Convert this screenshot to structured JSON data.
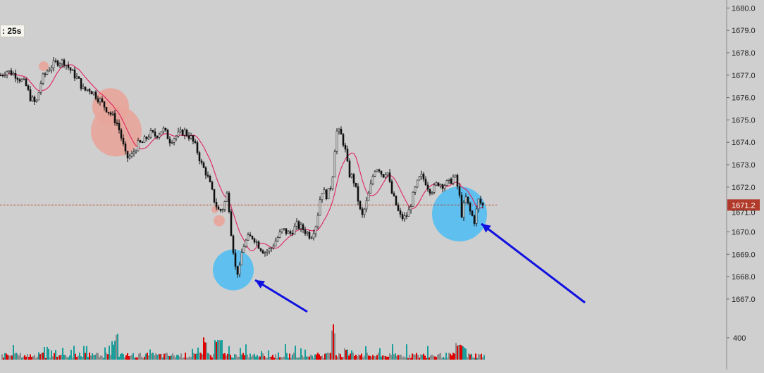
{
  "timer": {
    "label": ": 25s"
  },
  "price_axis": {
    "ticks": [
      "1680.0",
      "1679.0",
      "1678.0",
      "1677.0",
      "1676.0",
      "1675.0",
      "1674.0",
      "1673.0",
      "1672.0",
      "1670.0",
      "1669.0",
      "1668.0",
      "1667.0"
    ],
    "current_price_label": "1671.2",
    "partial_label": "1671.0"
  },
  "volume_axis": {
    "ticks": [
      "400"
    ]
  },
  "colors": {
    "background": "#cfcfcf",
    "candle": "#111111",
    "ma_line": "#e0245e",
    "current_price_line": "#b8402a",
    "price_tag": "#b23a2a",
    "buy_bubble": "#e8a49a",
    "sell_bubble": "#5fbfee",
    "arrow": "#1010e0",
    "vol_red": "#e00000",
    "vol_teal": "#1a9e9a",
    "vol_gray": "#8c8c8c"
  },
  "chart_data": {
    "type": "candlestick",
    "y_range": [
      1666.4,
      1680.2
    ],
    "current_price": 1671.2,
    "close_path": [
      [
        0,
        1677.0
      ],
      [
        8,
        1677.2
      ],
      [
        22,
        1677.0
      ],
      [
        35,
        1676.6
      ],
      [
        42,
        1676.0
      ],
      [
        50,
        1675.7
      ],
      [
        58,
        1676.8
      ],
      [
        68,
        1677.3
      ],
      [
        80,
        1677.6
      ],
      [
        90,
        1677.6
      ],
      [
        102,
        1677.1
      ],
      [
        110,
        1676.8
      ],
      [
        118,
        1676.3
      ],
      [
        125,
        1676.4
      ],
      [
        132,
        1676.2
      ],
      [
        140,
        1675.9
      ],
      [
        150,
        1675.5
      ],
      [
        158,
        1675.2
      ],
      [
        166,
        1674.8
      ],
      [
        172,
        1674.1
      ],
      [
        178,
        1673.3
      ],
      [
        186,
        1673.4
      ],
      [
        194,
        1673.9
      ],
      [
        202,
        1674.0
      ],
      [
        212,
        1674.4
      ],
      [
        220,
        1674.3
      ],
      [
        230,
        1674.6
      ],
      [
        240,
        1674.1
      ],
      [
        250,
        1674.3
      ],
      [
        260,
        1674.5
      ],
      [
        270,
        1674.2
      ],
      [
        278,
        1673.7
      ],
      [
        285,
        1673.0
      ],
      [
        292,
        1672.6
      ],
      [
        298,
        1672.0
      ],
      [
        304,
        1671.3
      ],
      [
        310,
        1670.9
      ],
      [
        316,
        1671.1
      ],
      [
        322,
        1671.8
      ],
      [
        327,
        1670.0
      ],
      [
        333,
        1668.4
      ],
      [
        338,
        1668.1
      ],
      [
        343,
        1669.3
      ],
      [
        350,
        1669.7
      ],
      [
        358,
        1669.8
      ],
      [
        366,
        1669.4
      ],
      [
        374,
        1669.1
      ],
      [
        382,
        1669.2
      ],
      [
        392,
        1669.7
      ],
      [
        400,
        1670.1
      ],
      [
        410,
        1669.9
      ],
      [
        420,
        1670.3
      ],
      [
        430,
        1670.1
      ],
      [
        440,
        1669.8
      ],
      [
        448,
        1670.4
      ],
      [
        455,
        1671.9
      ],
      [
        463,
        1671.6
      ],
      [
        470,
        1672.2
      ],
      [
        476,
        1674.5
      ],
      [
        482,
        1674.4
      ],
      [
        488,
        1673.8
      ],
      [
        494,
        1672.6
      ],
      [
        500,
        1672.4
      ],
      [
        506,
        1671.6
      ],
      [
        512,
        1670.6
      ],
      [
        518,
        1671.2
      ],
      [
        524,
        1671.9
      ],
      [
        530,
        1672.8
      ],
      [
        536,
        1672.9
      ],
      [
        542,
        1672.5
      ],
      [
        548,
        1672.8
      ],
      [
        554,
        1671.8
      ],
      [
        560,
        1671.3
      ],
      [
        566,
        1670.7
      ],
      [
        572,
        1670.6
      ],
      [
        578,
        1670.8
      ],
      [
        584,
        1671.5
      ],
      [
        590,
        1672.1
      ],
      [
        596,
        1672.5
      ],
      [
        602,
        1672.3
      ],
      [
        608,
        1671.9
      ],
      [
        614,
        1671.9
      ],
      [
        620,
        1672.2
      ],
      [
        628,
        1672.1
      ],
      [
        636,
        1672.2
      ],
      [
        644,
        1672.5
      ],
      [
        650,
        1671.8
      ],
      [
        654,
        1670.8
      ],
      [
        660,
        1671.5
      ],
      [
        666,
        1670.9
      ],
      [
        672,
        1670.5
      ],
      [
        678,
        1671.4
      ],
      [
        686,
        1671.1
      ]
    ],
    "bubbles": [
      {
        "type": "buy",
        "x": 62,
        "price": 1677.4,
        "r": 7
      },
      {
        "type": "buy",
        "x": 157,
        "price": 1675.6,
        "r": 26
      },
      {
        "type": "buy",
        "x": 165,
        "price": 1674.5,
        "r": 36
      },
      {
        "type": "buy",
        "x": 305,
        "price": 1671.0,
        "r": 5
      },
      {
        "type": "buy",
        "x": 311,
        "price": 1670.5,
        "r": 8
      },
      {
        "type": "sell",
        "x": 331,
        "price": 1668.3,
        "r": 29
      },
      {
        "type": "sell",
        "x": 652,
        "price": 1670.8,
        "r": 39
      }
    ],
    "arrows": [
      {
        "from": [
          436,
          443
        ],
        "to": [
          362,
          398
        ]
      },
      {
        "from": [
          830,
          430
        ],
        "to": [
          683,
          318
        ]
      }
    ]
  }
}
